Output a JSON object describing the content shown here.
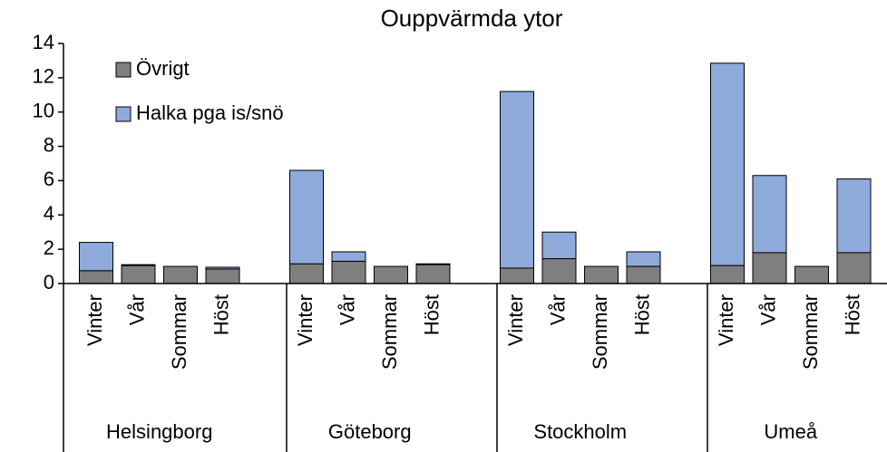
{
  "chart_data": {
    "type": "stacked_bar",
    "title": "Ouppvärmda ytor",
    "groups": [
      "Helsingborg",
      "Göteborg",
      "Stockholm",
      "Umeå"
    ],
    "categories": [
      "Vinter",
      "Vår",
      "Sommar",
      "Höst",
      "Vinter",
      "Vår",
      "Sommar",
      "Höst",
      "Vinter",
      "Vår",
      "Sommar",
      "Höst",
      "Vinter",
      "Vår",
      "Sommar",
      "Höst"
    ],
    "series": [
      {
        "name": "Övrigt",
        "color": "#7f7f7f",
        "values": [
          0.75,
          1.05,
          1.0,
          0.85,
          1.15,
          1.3,
          1.0,
          1.1,
          0.9,
          1.45,
          1.0,
          1.0,
          1.05,
          1.8,
          1.0,
          1.8
        ]
      },
      {
        "name": "Halka pga is/snö",
        "color": "#8eaadb",
        "values": [
          1.65,
          0.05,
          0,
          0.1,
          5.45,
          0.55,
          0,
          0.05,
          10.3,
          1.55,
          0,
          0.85,
          11.8,
          4.5,
          0,
          4.3
        ]
      }
    ],
    "ylim": [
      0,
      14
    ],
    "yticks": [
      0,
      2,
      4,
      6,
      8,
      10,
      12,
      14
    ],
    "legend": "top-left"
  }
}
